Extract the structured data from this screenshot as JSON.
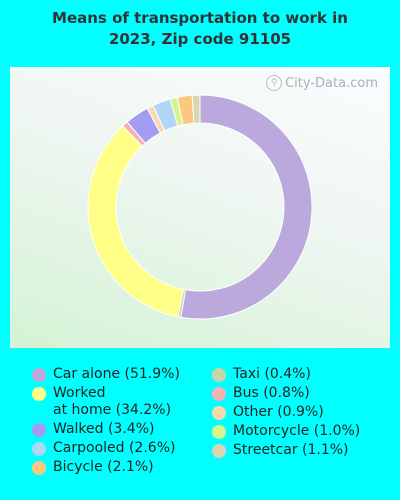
{
  "title": "Means of transportation to work in\n2023, Zip code 91105",
  "watermark": {
    "text": "City-Data.com",
    "icon": "magnifier-icon"
  },
  "chart_data": {
    "type": "pie",
    "variant": "donut",
    "title": "Means of transportation to work in 2023, Zip code 91105",
    "start_at": "top",
    "direction": "clockwise",
    "slices": [
      {
        "label": "Car alone",
        "value": 51.9,
        "display": "Car alone (51.9%)",
        "color": "#BBA8DC"
      },
      {
        "label": "Taxi",
        "value": 0.4,
        "display": "Taxi (0.4%)",
        "color": "#C6D6A8"
      },
      {
        "label": "Worked at home",
        "value": 34.2,
        "display": "Worked\nat home (34.2%)",
        "color": "#FFFF88"
      },
      {
        "label": "Bus",
        "value": 0.8,
        "display": "Bus (0.8%)",
        "color": "#F7B1B1"
      },
      {
        "label": "Walked",
        "value": 3.4,
        "display": "Walked (3.4%)",
        "color": "#A49CF2"
      },
      {
        "label": "Other",
        "value": 0.9,
        "display": "Other (0.9%)",
        "color": "#FAD8AE"
      },
      {
        "label": "Carpooled",
        "value": 2.6,
        "display": "Carpooled (2.6%)",
        "color": "#B1D7F7"
      },
      {
        "label": "Motorcycle",
        "value": 1.0,
        "display": "Motorcycle (1.0%)",
        "color": "#D3F58A"
      },
      {
        "label": "Bicycle",
        "value": 2.1,
        "display": "Bicycle (2.1%)",
        "color": "#FBC880"
      },
      {
        "label": "Streetcar",
        "value": 1.1,
        "display": "Streetcar (1.1%)",
        "color": "#D9D6B4"
      }
    ],
    "legend": {
      "placement": "bottom",
      "columns": [
        [
          "Car alone",
          "Worked at home",
          "Walked",
          "Carpooled",
          "Bicycle"
        ],
        [
          "Taxi",
          "Bus",
          "Other",
          "Motorcycle",
          "Streetcar"
        ]
      ]
    }
  }
}
